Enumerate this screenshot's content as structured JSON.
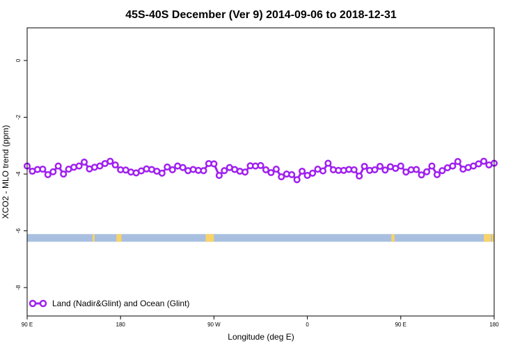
{
  "chart_data": {
    "type": "line",
    "title": "45S-40S December (Ver 9)   2014-09-06 to 2018-12-31",
    "xlabel": "Longitude (deg E)",
    "ylabel": "XCO2 - MLO trend (ppm)",
    "x_tick_values": [
      90,
      180,
      270,
      360,
      450,
      540
    ],
    "x_tick_labels": [
      "90 E",
      "180",
      "90 W",
      "0",
      "90 E",
      "180"
    ],
    "xlim": [
      90,
      540
    ],
    "y_tick_values": [
      0,
      -2,
      -4,
      -6,
      -8
    ],
    "y_tick_labels": [
      "0",
      "-2",
      "-4",
      "-6",
      "-8"
    ],
    "ylim": [
      -9.0,
      1.15
    ],
    "grid": false,
    "legend_position": "bottom-left",
    "series": [
      {
        "name": "Land (Nadir&Glint) and Ocean (Glint)",
        "color": "#a020f0",
        "marker": "open-circle",
        "x": [
          90,
          95,
          100,
          105,
          110,
          115,
          120,
          125,
          130,
          135,
          140,
          145,
          150,
          155,
          160,
          165,
          170,
          175,
          180,
          185,
          190,
          195,
          200,
          205,
          210,
          215,
          220,
          225,
          230,
          235,
          240,
          245,
          250,
          255,
          260,
          265,
          270,
          275,
          280,
          285,
          290,
          295,
          300,
          305,
          310,
          315,
          320,
          325,
          330,
          335,
          340,
          345,
          350,
          355,
          360,
          365,
          370,
          375,
          380,
          385,
          390,
          395,
          400,
          405,
          410,
          415,
          420,
          425,
          430,
          435,
          440,
          445,
          450,
          455,
          460,
          465,
          470,
          475,
          480,
          485,
          490,
          495,
          500,
          505,
          510,
          515,
          520,
          525,
          530,
          535,
          540
        ],
        "values": [
          -3.72,
          -3.9,
          -3.84,
          -3.83,
          -4.02,
          -3.92,
          -3.72,
          -4.0,
          -3.83,
          -3.76,
          -3.72,
          -3.58,
          -3.82,
          -3.76,
          -3.72,
          -3.63,
          -3.55,
          -3.68,
          -3.85,
          -3.86,
          -3.93,
          -3.96,
          -3.89,
          -3.82,
          -3.84,
          -3.9,
          -3.97,
          -3.75,
          -3.85,
          -3.72,
          -3.77,
          -3.88,
          -3.84,
          -3.87,
          -3.88,
          -3.63,
          -3.64,
          -4.05,
          -3.88,
          -3.77,
          -3.84,
          -3.9,
          -3.93,
          -3.71,
          -3.72,
          -3.7,
          -3.85,
          -3.95,
          -3.83,
          -4.1,
          -4.0,
          -4.02,
          -4.2,
          -3.9,
          -4.05,
          -3.97,
          -3.83,
          -3.89,
          -3.62,
          -3.85,
          -3.87,
          -3.87,
          -3.84,
          -3.85,
          -4.07,
          -3.73,
          -3.87,
          -3.85,
          -3.73,
          -3.86,
          -3.74,
          -3.8,
          -3.72,
          -3.93,
          -3.85,
          -3.84,
          -4.03,
          -3.92,
          -3.72,
          -4.02,
          -3.88,
          -3.78,
          -3.72,
          -3.56,
          -3.83,
          -3.77,
          -3.72,
          -3.64,
          -3.55,
          -3.68,
          -3.62
        ]
      }
    ],
    "surface_strip": {
      "y": -6.25,
      "ocean_color": "#a8bfe0",
      "land_color": "#f7d36a",
      "land_spans": [
        [
          153,
          155
        ],
        [
          176,
          181
        ],
        [
          262,
          270
        ],
        [
          441,
          444
        ],
        [
          530,
          537
        ],
        [
          538,
          540
        ]
      ]
    }
  }
}
